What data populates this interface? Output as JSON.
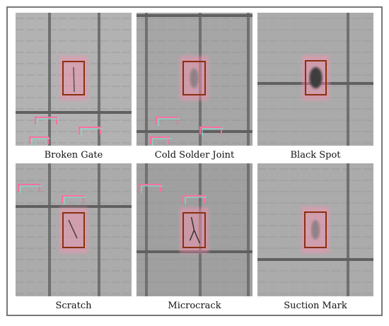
{
  "panels": [
    {
      "caption": "Broken Gate"
    },
    {
      "caption": "Cold Solder Joint"
    },
    {
      "caption": "Black Spot"
    },
    {
      "caption": "Scratch"
    },
    {
      "caption": "Microcrack"
    },
    {
      "caption": "Suction Mark"
    }
  ]
}
